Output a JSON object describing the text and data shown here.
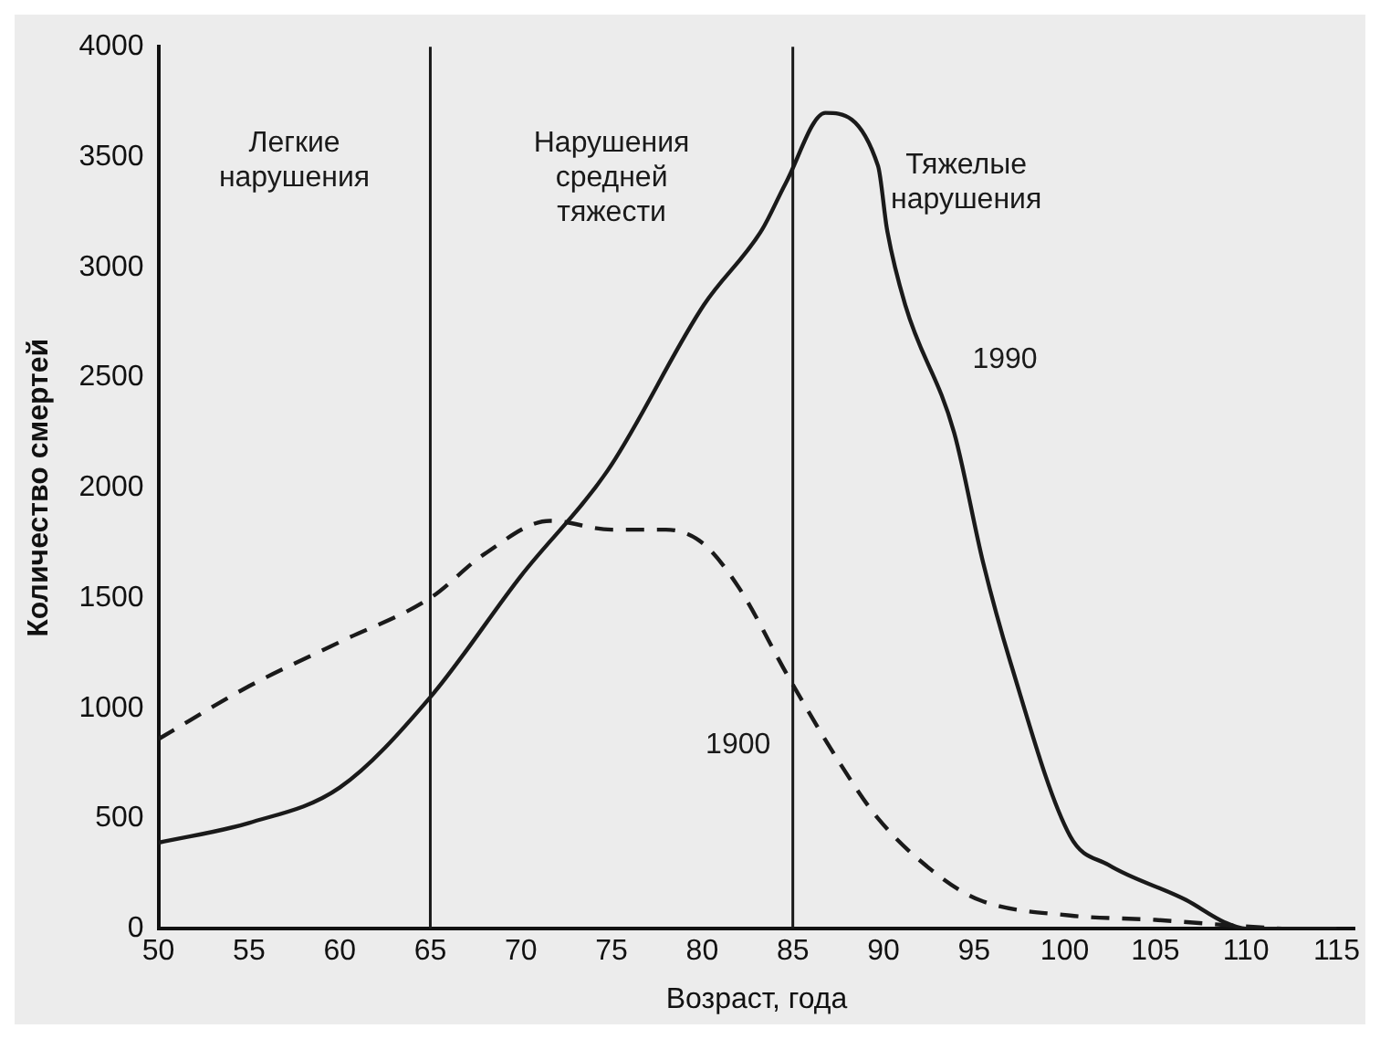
{
  "chart_data": {
    "type": "line",
    "xlabel": "Возраст, года",
    "ylabel": "Количество смертей",
    "xlim": [
      50,
      116
    ],
    "xticks": [
      50,
      55,
      60,
      65,
      70,
      75,
      80,
      85,
      90,
      95,
      100,
      105,
      110,
      115
    ],
    "ylim": [
      0,
      4000
    ],
    "yticks": [
      0,
      500,
      1000,
      1500,
      2000,
      2500,
      3000,
      3500,
      4000
    ],
    "grid": false,
    "legend": false,
    "marker": "none",
    "series": [
      {
        "name": "1990",
        "color": "#1a1a1a",
        "line_style": "solid",
        "x": [
          50,
          55,
          60,
          65,
          70,
          74.8,
          80.1,
          83.3,
          84.6,
          86.8,
          89.7,
          90.2,
          91.2,
          93.9,
          95.5,
          97,
          100.3,
          102.4,
          106.7,
          108.8,
          110,
          115
        ],
        "values": [
          390,
          480,
          640,
          1050,
          1600,
          2080,
          2830,
          3170,
          3380,
          3700,
          3460,
          3170,
          2830,
          2250,
          1660,
          1210,
          420,
          290,
          130,
          30,
          0,
          0
        ]
      },
      {
        "name": "1900",
        "color": "#1a1a1a",
        "line_style": "dashed",
        "x": [
          50,
          55,
          60,
          65,
          68,
          71.6,
          75,
          78,
          80,
          82,
          84.7,
          87.6,
          89.7,
          92.9,
          95.3,
          100.3,
          105,
          110,
          112
        ],
        "values": [
          860,
          1100,
          1300,
          1500,
          1700,
          1850,
          1810,
          1810,
          1750,
          1550,
          1150,
          750,
          500,
          250,
          130,
          60,
          40,
          10,
          0
        ]
      }
    ],
    "ref_lines": [
      {
        "axis": "x",
        "value": 65,
        "color": "#1a1a1a"
      },
      {
        "axis": "x",
        "value": 85,
        "color": "#1a1a1a"
      }
    ],
    "annotations": [
      "Легкие\nнарушения",
      "Нарушения\nсредней\nтяжести",
      "Тяжелые\nнарушения"
    ]
  }
}
